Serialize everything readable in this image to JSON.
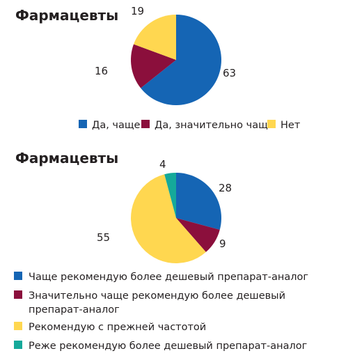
{
  "chart_data": [
    {
      "type": "pie",
      "title": "Фармацевты",
      "slices": [
        {
          "label": "Да, чаще",
          "value": 63,
          "color": "#1565b4"
        },
        {
          "label": "Да, значительно чаще",
          "value": 16,
          "color": "#8b0f3c"
        },
        {
          "label": "Нет",
          "value": 19,
          "color": "#ffd750"
        }
      ],
      "legend_position": "bottom"
    },
    {
      "type": "pie",
      "title": "Фармацевты",
      "slices": [
        {
          "label": "Чаще рекомендую более дешевый препарат-аналог",
          "value": 28,
          "color": "#1565b4"
        },
        {
          "label": "Значительно чаще рекомендую более дешевый препарат-аналог",
          "value": 9,
          "color": "#8b0f3c"
        },
        {
          "label": "Рекомендую с прежней частотой",
          "value": 55,
          "color": "#ffd750"
        },
        {
          "label": "Реже рекомендую более дешевый препарат-аналог",
          "value": 4,
          "color": "#15a99a"
        }
      ],
      "legend_position": "bottom"
    }
  ]
}
